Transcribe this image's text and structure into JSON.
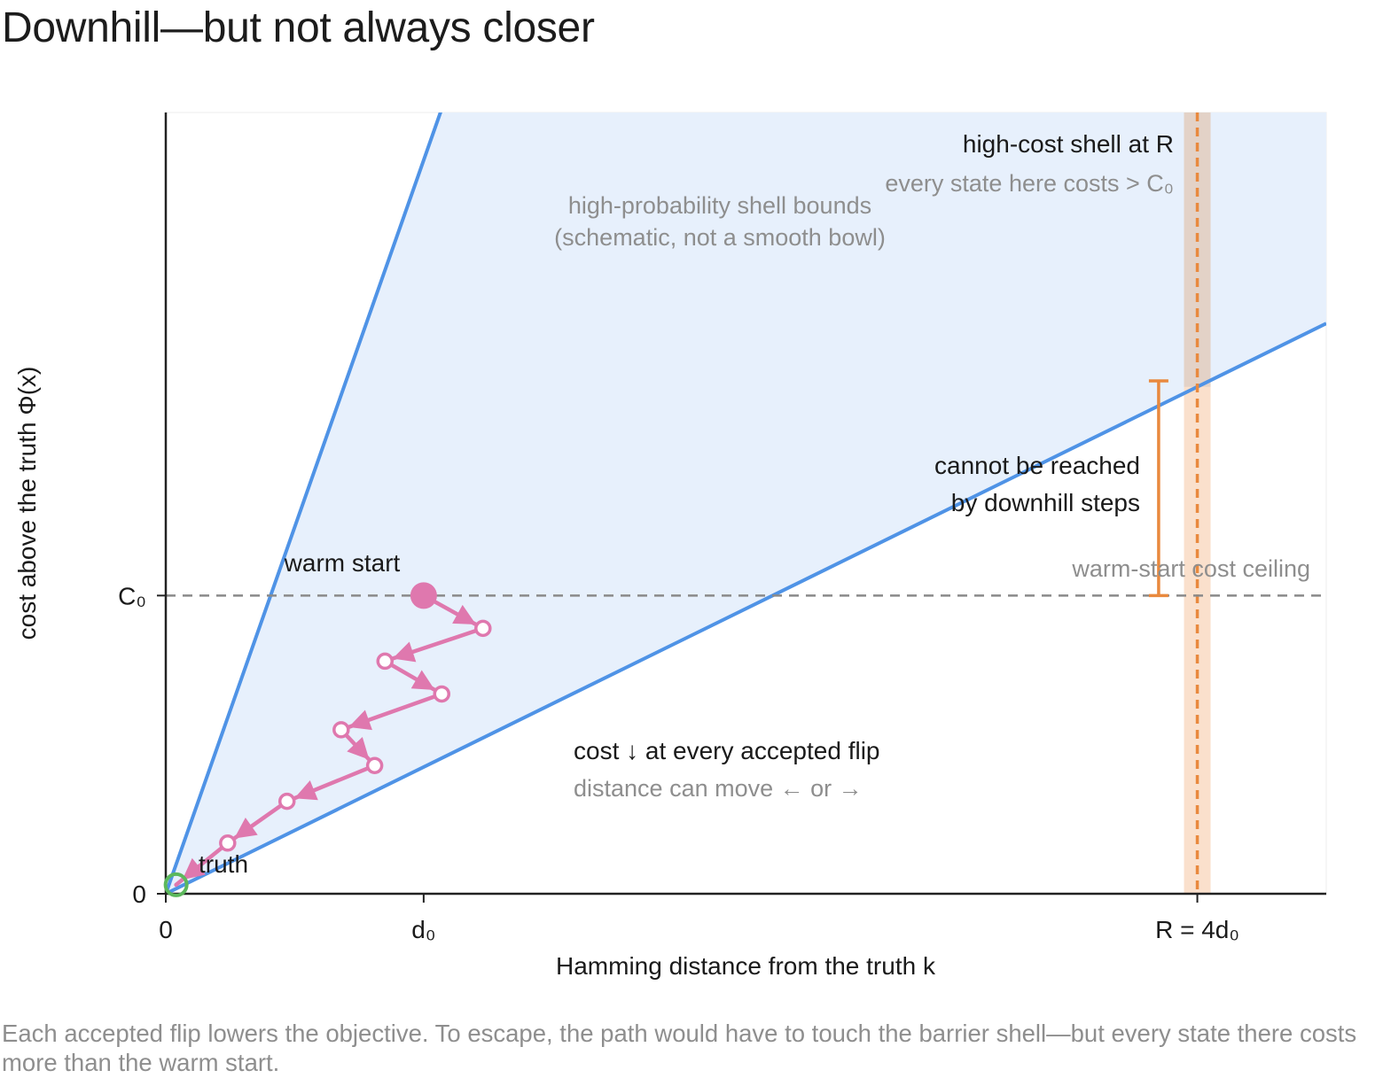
{
  "title": "Downhill—but not always closer",
  "caption": "Each accepted flip lowers the objective. To escape, the path would have to touch the barrier shell—but every state there costs more than the warm start.",
  "colors": {
    "bounds_line": "#4f93e6",
    "wedge_fill": "#e7f0fc",
    "path": "#df78ae",
    "truth": "#5cb85c",
    "shell": "#e9893e",
    "shell_band": "#fae0cc",
    "ceiling": "#8a8a8a",
    "axis": "#222222",
    "muted_text": "#8e8e8e"
  },
  "chart_data": {
    "type": "line",
    "xlabel": "Hamming distance from the truth k",
    "ylabel": "cost above the truth Φ(x)",
    "x_ticks": [
      {
        "value": 0,
        "label": "0"
      },
      {
        "value": 1,
        "label": "d₀"
      },
      {
        "value": 4,
        "label": "R = 4d₀"
      }
    ],
    "y_ticks": [
      {
        "value": 0,
        "label": "0"
      },
      {
        "value": 1,
        "label": "C₀"
      }
    ],
    "xlim": [
      0,
      4.5
    ],
    "ylim": [
      0,
      2.62
    ],
    "bounds": [
      {
        "name": "upper",
        "slope": 2.46
      },
      {
        "name": "lower",
        "slope": 0.425
      }
    ],
    "ceiling": {
      "value": 1,
      "label": "warm-start cost ceiling"
    },
    "shell": {
      "x": 4,
      "label": "high-cost shell at R",
      "sublabel": "every state here costs > C₀"
    },
    "barrier_gap": {
      "x": 3.85,
      "from": 1,
      "to": 1.72
    },
    "series": [
      {
        "x": [
          1.0,
          1.23,
          0.85,
          1.07,
          0.68,
          0.81,
          0.47,
          0.24,
          0.04
        ],
        "y": [
          1.0,
          0.89,
          0.78,
          0.67,
          0.55,
          0.43,
          0.31,
          0.17,
          0.03
        ]
      }
    ],
    "truth": {
      "x": 0.04,
      "y": 0.03,
      "label": "truth"
    },
    "warm_start": {
      "x": 1.0,
      "y": 1.0,
      "label": "warm start"
    },
    "annotations": {
      "bounds_label_1": "high-probability shell bounds",
      "bounds_label_2": "(schematic, not a smooth bowl)",
      "unreachable_1": "cannot be reached",
      "unreachable_2": "by downhill steps",
      "descent_1": "cost ↓ at every accepted flip",
      "descent_2": "distance can move ← or →"
    }
  }
}
